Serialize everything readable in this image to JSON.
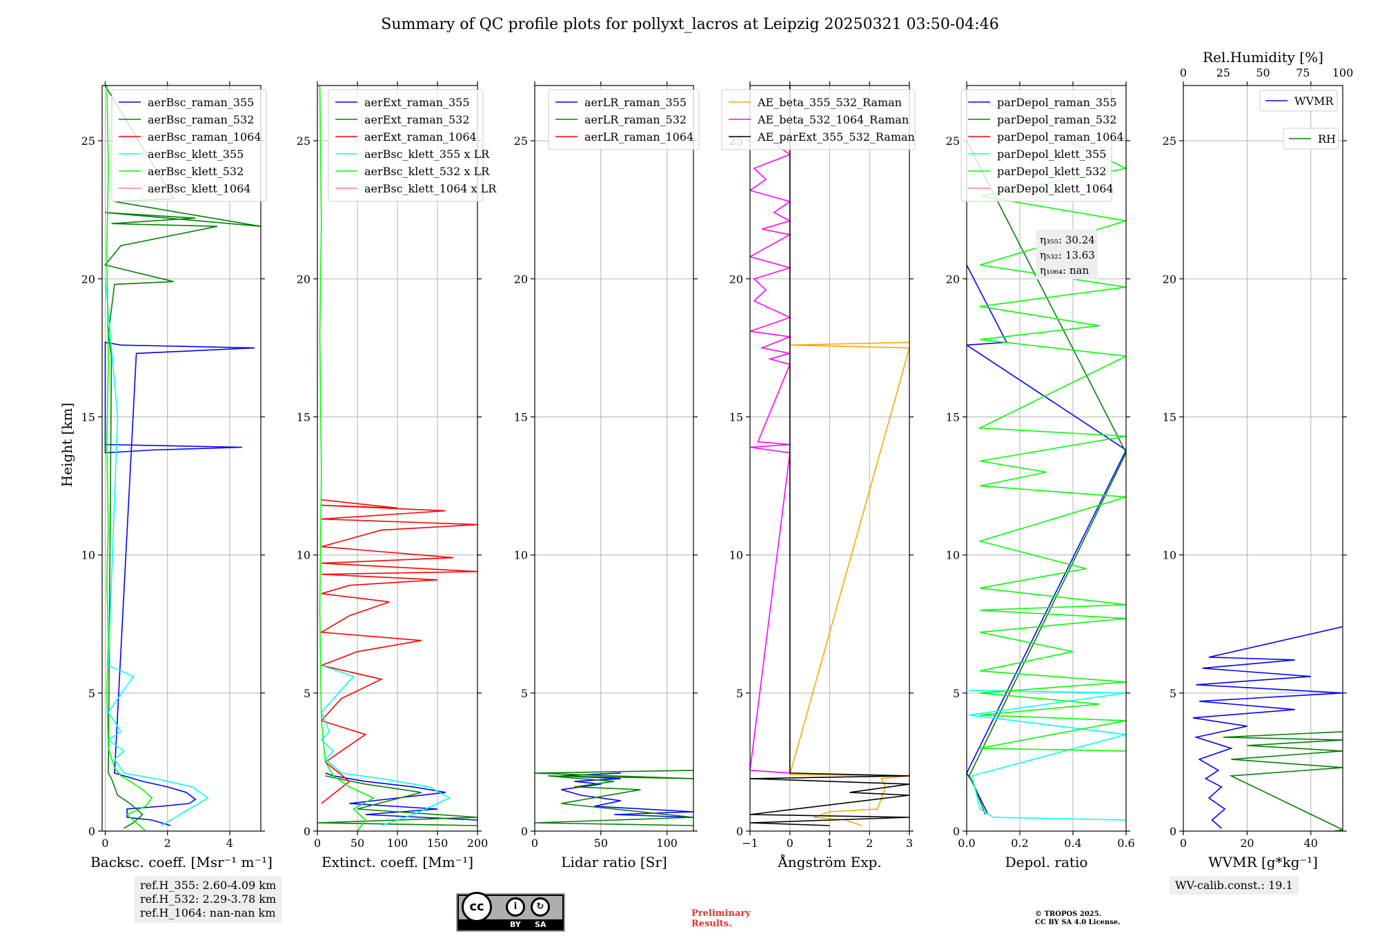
{
  "figure_title": "Summary of QC profile plots for pollyxt_lacros at Leipzig 20250321 03:50-04:46",
  "footer": {
    "ref_lines": [
      "ref.H_355: 2.60-4.09 km",
      "ref.H_532: 2.29-3.78 km",
      "ref.H_1064: nan-nan km"
    ],
    "wv_calib": "WV-calib.const.: 19.1",
    "preliminary": [
      "Preliminary",
      "Results."
    ],
    "copyright": [
      "© TROPOS 2025.",
      "CC BY SA 4.0 License."
    ],
    "license_badge": {
      "icon": "cc-by-sa-icon",
      "by": "BY",
      "sa": "SA"
    }
  },
  "colors": {
    "blue": "#0000ff",
    "green": "#008000",
    "red": "#ff0000",
    "cyan": "#00ffff",
    "lime": "#00ff00",
    "salmon": "#fa8072",
    "orange": "#ffa500",
    "magenta": "#ff00ff",
    "black": "#000000"
  },
  "chart_data": [
    {
      "type": "line",
      "xlabel": "Backsc. coeff. [Msr⁻¹ m⁻¹]",
      "ylabel": "Height [km]",
      "xlim": [
        -0.1,
        5
      ],
      "ylim": [
        0,
        27
      ],
      "xticks": [
        0,
        2,
        4
      ],
      "xticklabels": [
        "0",
        "2",
        "4"
      ],
      "yticks": [
        0,
        5,
        10,
        15,
        20,
        25
      ],
      "yticklabels": [
        "0",
        "5",
        "10",
        "15",
        "20",
        "25"
      ],
      "grid": true,
      "legend_placement": "top-right",
      "series": [
        {
          "name": "aerBsc_raman_355",
          "color": "#0000ff",
          "x": [
            2.1,
            1.5,
            0.7,
            0.7,
            1.8,
            2.7,
            2.9,
            2.6,
            2.0,
            1.2,
            0.6,
            0.3,
            1.0,
            4.8,
            0.5,
            0,
            0,
            1.5,
            4.4,
            0
          ],
          "y": [
            0.2,
            0.4,
            0.5,
            0.8,
            0.9,
            1.0,
            1.15,
            1.4,
            1.6,
            1.8,
            2.0,
            2.1,
            17.3,
            17.5,
            17.6,
            17.7,
            13.7,
            13.8,
            13.9,
            14.0
          ]
        },
        {
          "name": "aerBsc_raman_532",
          "color": "#008000",
          "x": [
            0.6,
            0.9,
            1.2,
            0.8,
            0.4,
            0.3,
            0.2,
            0.1,
            0.2,
            0.1,
            0.3,
            2.2,
            0,
            0.5,
            3.6,
            0.2,
            2.9,
            0,
            5,
            0.3,
            2.2,
            0
          ],
          "y": [
            0.1,
            0.3,
            0.6,
            1.0,
            1.3,
            1.6,
            1.9,
            2.1,
            17.2,
            18.0,
            19.8,
            19.9,
            20.5,
            21.2,
            21.9,
            22.0,
            22.2,
            22.4,
            21.9,
            22.8,
            22.9,
            27
          ]
        },
        {
          "name": "aerBsc_raman_1064",
          "color": "#ff0000",
          "x": [],
          "y": []
        },
        {
          "name": "aerBsc_klett_355",
          "color": "#00ffff",
          "x": [
            1.8,
            2.4,
            3.3,
            2.8,
            1.6,
            0.6,
            0.3,
            0.6,
            0.1,
            0.5,
            0.1,
            0.9,
            0.1,
            0.4,
            0
          ],
          "y": [
            0.2,
            0.6,
            1.2,
            1.6,
            1.9,
            2.1,
            2.6,
            2.9,
            3.3,
            3.6,
            4.3,
            5.6,
            6.0,
            15.0,
            20.0
          ]
        },
        {
          "name": "aerBsc_klett_532",
          "color": "#00ff00",
          "x": [
            1.3,
            1.0,
            0.7,
            1.3,
            1.5,
            1.2,
            0.8,
            0.5,
            0.3,
            0.1,
            0.05,
            0.1,
            0.05,
            0.1,
            0.05,
            0.1,
            0.05,
            0.1,
            0.05
          ],
          "y": [
            0.0,
            0.3,
            0.6,
            0.9,
            1.2,
            1.5,
            1.8,
            2.0,
            2.3,
            3.0,
            5.0,
            7.0,
            9.0,
            11.0,
            14.0,
            17.0,
            21.0,
            24.0,
            27.0
          ]
        },
        {
          "name": "aerBsc_klett_1064",
          "color": "#fa8072",
          "x": [],
          "y": []
        }
      ]
    },
    {
      "type": "line",
      "xlabel": "Extinct. coeff. [Mm⁻¹]",
      "ylabel": "",
      "xlim": [
        0,
        200
      ],
      "ylim": [
        0,
        27
      ],
      "xticks": [
        0,
        50,
        100,
        150,
        200
      ],
      "xticklabels": [
        "0",
        "50",
        "100",
        "150",
        "200"
      ],
      "yticks": [
        0,
        5,
        10,
        15,
        20,
        25
      ],
      "yticklabels": [
        "0",
        "5",
        "10",
        "15",
        "20",
        "25"
      ],
      "grid": true,
      "legend_placement": "top-right",
      "series": [
        {
          "name": "aerExt_raman_355",
          "color": "#0000ff",
          "x": [
            200,
            60,
            150,
            40,
            100,
            160,
            120,
            60,
            20,
            10
          ],
          "y": [
            0.4,
            0.6,
            0.8,
            1.0,
            1.2,
            1.4,
            1.6,
            1.8,
            2.0,
            2.1
          ]
        },
        {
          "name": "aerExt_raman_532",
          "color": "#008000",
          "x": [
            200,
            0,
            200,
            50,
            130,
            60,
            10
          ],
          "y": [
            0.2,
            0.3,
            0.5,
            0.8,
            1.4,
            1.7,
            2.0
          ]
        },
        {
          "name": "aerExt_raman_1064",
          "color": "#ff0000",
          "x": [
            5,
            40,
            10,
            60,
            5,
            30,
            80,
            5,
            50,
            130,
            5,
            40,
            90,
            5,
            40,
            150,
            5,
            200,
            5,
            170,
            5,
            80,
            200,
            5,
            160,
            5,
            100,
            5
          ],
          "y": [
            1.0,
            1.8,
            2.5,
            3.5,
            4.0,
            4.8,
            5.5,
            6.0,
            6.5,
            6.9,
            7.2,
            7.8,
            8.3,
            8.6,
            8.9,
            9.1,
            9.3,
            9.4,
            9.7,
            9.9,
            10.3,
            10.9,
            11.1,
            11.3,
            11.6,
            11.8,
            11.7,
            12.0
          ]
        },
        {
          "name": "aerBsc_klett_355 x LR",
          "color": "#00ffff",
          "x": [
            80,
            120,
            165,
            140,
            80,
            30,
            10,
            20,
            5,
            15,
            5,
            45,
            5
          ],
          "y": [
            0.2,
            0.6,
            1.2,
            1.6,
            1.9,
            2.1,
            2.6,
            2.9,
            3.3,
            3.6,
            4.3,
            5.6,
            6.0
          ]
        },
        {
          "name": "aerBsc_klett_532 x LR",
          "color": "#00ff00",
          "x": [
            50,
            60,
            45,
            70,
            40,
            20,
            10,
            5,
            3,
            5,
            3,
            5,
            3
          ],
          "y": [
            0.0,
            0.4,
            0.8,
            1.2,
            1.6,
            2.0,
            2.5,
            4.0,
            8.0,
            13.0,
            18.0,
            22.0,
            27.0
          ]
        },
        {
          "name": "aerBsc_klett_1064 x LR",
          "color": "#fa8072",
          "x": [],
          "y": []
        }
      ]
    },
    {
      "type": "line",
      "xlabel": "Lidar ratio [Sr]",
      "ylabel": "",
      "xlim": [
        0,
        120
      ],
      "ylim": [
        0,
        27
      ],
      "xticks": [
        0,
        50,
        100
      ],
      "xticklabels": [
        "0",
        "50",
        "100"
      ],
      "yticks": [
        0,
        5,
        10,
        15,
        20,
        25
      ],
      "yticklabels": [
        "0",
        "5",
        "10",
        "15",
        "20",
        "25"
      ],
      "grid": true,
      "legend_placement": "top-right",
      "series": [
        {
          "name": "aerLR_raman_355",
          "color": "#0000ff",
          "x": [
            120,
            60,
            120,
            45,
            65,
            35,
            20,
            50,
            30,
            65,
            20,
            65
          ],
          "y": [
            0.5,
            0.6,
            0.7,
            0.9,
            1.1,
            1.3,
            1.5,
            1.7,
            1.8,
            1.9,
            2.0,
            2.1
          ]
        },
        {
          "name": "aerLR_raman_532",
          "color": "#008000",
          "x": [
            120,
            0,
            120,
            20,
            80,
            30,
            60,
            10,
            120,
            0,
            120
          ],
          "y": [
            0.2,
            0.3,
            0.5,
            1.0,
            1.5,
            1.6,
            1.8,
            2.0,
            1.9,
            2.1,
            2.2
          ]
        },
        {
          "name": "aerLR_raman_1064",
          "color": "#ff0000",
          "x": [],
          "y": []
        }
      ]
    },
    {
      "type": "line",
      "xlabel": "Ångström Exp.",
      "ylabel": "",
      "xlim": [
        -1,
        3
      ],
      "ylim": [
        0,
        27
      ],
      "xticks": [
        -1,
        0,
        1,
        2,
        3
      ],
      "xticklabels": [
        "−1",
        "0",
        "1",
        "2",
        "3"
      ],
      "yticks": [
        0,
        5,
        10,
        15,
        20,
        25
      ],
      "yticklabels": [
        "0",
        "5",
        "10",
        "15",
        "20",
        "25"
      ],
      "grid": true,
      "legend_placement": "top-right",
      "series": [
        {
          "name": "AE_beta_355_532_Raman",
          "color": "#ffa500",
          "x": [
            1.8,
            1.4,
            0.6,
            1.0,
            2.2,
            2.3,
            2.4,
            2.3,
            3.0,
            0,
            3.0,
            0,
            3.0
          ],
          "y": [
            0.2,
            0.4,
            0.5,
            0.7,
            0.8,
            1.2,
            1.6,
            1.9,
            2.0,
            2.05,
            17.5,
            17.6,
            17.7
          ]
        },
        {
          "name": "AE_beta_532_1064_Raman",
          "color": "#ff00ff",
          "x": [
            0,
            -1,
            0,
            -1,
            0,
            -0.8,
            0,
            -0.5,
            0,
            -0.7,
            0,
            -1,
            0,
            -0.9,
            -0.6,
            -0.9,
            0,
            -1,
            0,
            -0.7,
            0,
            -0.4,
            0,
            -1,
            -0.6,
            -0.9,
            0,
            -0.3,
            0
          ],
          "y": [
            2.1,
            2.2,
            13.7,
            13.9,
            14.0,
            14.1,
            16.9,
            17.1,
            17.3,
            17.5,
            17.9,
            18.1,
            18.6,
            19.2,
            19.6,
            20.0,
            20.4,
            20.8,
            21.6,
            21.8,
            22.1,
            22.4,
            22.8,
            23.2,
            23.6,
            24.0,
            24.5,
            24.8,
            25.2
          ]
        },
        {
          "name": "AE_parExt_355_532_Raman",
          "color": "#000000",
          "x": [
            1.0,
            -1,
            3.0,
            -1,
            3.0,
            1.5,
            2.5,
            3.0,
            -1,
            3.0,
            0,
            0
          ],
          "y": [
            0.2,
            0.3,
            0.5,
            0.6,
            1.3,
            1.4,
            1.6,
            1.7,
            1.9,
            2.0,
            2.1,
            27
          ]
        }
      ]
    },
    {
      "type": "line",
      "xlabel": "Depol. ratio",
      "ylabel": "",
      "xlim": [
        0,
        0.6
      ],
      "ylim": [
        0,
        27
      ],
      "xticks": [
        0,
        0.2,
        0.4,
        0.6
      ],
      "xticklabels": [
        "0.0",
        "0.2",
        "0.4",
        "0.6"
      ],
      "yticks": [
        0,
        5,
        10,
        15,
        20,
        25
      ],
      "yticklabels": [
        "0",
        "5",
        "10",
        "15",
        "20",
        "25"
      ],
      "grid": true,
      "legend_placement": "top-left",
      "series": [
        {
          "name": "parDepol_raman_355",
          "color": "#0000ff",
          "x": [
            0.08,
            0.05,
            0.02,
            0,
            0.6,
            0,
            0.15,
            0
          ],
          "y": [
            0.6,
            1.2,
            1.8,
            2.1,
            13.8,
            17.6,
            17.7,
            20.5
          ]
        },
        {
          "name": "parDepol_raman_532",
          "color": "#008000",
          "x": [
            0.07,
            0.05,
            0.03,
            0.01,
            0.6,
            0
          ],
          "y": [
            0.6,
            1.1,
            1.6,
            2.0,
            13.7,
            25.0
          ]
        },
        {
          "name": "parDepol_raman_1064",
          "color": "#ff0000",
          "x": [],
          "y": []
        },
        {
          "name": "parDepol_klett_355",
          "color": "#00ffff",
          "x": [
            0.6,
            0.1,
            0.05,
            0.02,
            0.6,
            0.01,
            0.6,
            0.01
          ],
          "y": [
            0.4,
            0.5,
            0.8,
            2.0,
            3.5,
            4.2,
            5.0,
            5.1
          ]
        },
        {
          "name": "parDepol_klett_532",
          "color": "#00ff00",
          "x": [
            0.6,
            0.05,
            0.6,
            0.05,
            0.5,
            0.05,
            0.6,
            0.05,
            0.4,
            0.05,
            0.6,
            0.05,
            0.6,
            0.05,
            0.45,
            0.05,
            0.6,
            0.05,
            0.3,
            0.05,
            0.6,
            0.05,
            0.6,
            0.05,
            0.5,
            0.05,
            0.6,
            0.05,
            0.6,
            0.05,
            0.6,
            0.05
          ],
          "y": [
            2.9,
            3.0,
            4.0,
            4.2,
            4.6,
            5.0,
            5.4,
            5.8,
            6.5,
            7.2,
            7.7,
            8.0,
            8.2,
            8.8,
            9.5,
            10.5,
            12.1,
            12.5,
            13.0,
            13.4,
            14.3,
            14.6,
            17.2,
            17.8,
            18.3,
            19.0,
            19.7,
            20.5,
            22.1,
            23.0,
            24.0,
            26.5
          ]
        },
        {
          "name": "parDepol_klett_1064",
          "color": "#fa8072",
          "x": [],
          "y": []
        }
      ],
      "annotations": [
        "η₃₅₅: 30.24",
        "η₅₃₂: 13.63",
        "η₁₀₆₄: nan"
      ]
    },
    {
      "type": "line",
      "xlabel": "WVMR [g*kg⁻¹]",
      "ylabel": "",
      "xlim": [
        0,
        50
      ],
      "ylim": [
        0,
        27
      ],
      "xticks": [
        0,
        20,
        40
      ],
      "xticklabels": [
        "0",
        "20",
        "40"
      ],
      "yticks": [
        0,
        5,
        10,
        15,
        20,
        25
      ],
      "yticklabels": [
        "0",
        "5",
        "10",
        "15",
        "20",
        "25"
      ],
      "top_axis": {
        "label": "Rel.Humidity [%]",
        "ticks": [
          "0",
          "25",
          "50",
          "75",
          "100"
        ],
        "lim": [
          0,
          100
        ]
      },
      "grid": true,
      "legend_placement": "top-right",
      "series": [
        {
          "name": "WVMR",
          "color": "#0000ff",
          "x": [
            12,
            9,
            13,
            8,
            12,
            7,
            11,
            5,
            15,
            4,
            20,
            3,
            35,
            5,
            50,
            4,
            40,
            6,
            35,
            8,
            50
          ],
          "y": [
            0.1,
            0.4,
            0.8,
            1.2,
            1.6,
            1.9,
            2.2,
            2.6,
            3.0,
            3.4,
            3.8,
            4.1,
            4.4,
            4.7,
            5.0,
            5.3,
            5.6,
            5.9,
            6.2,
            6.3,
            7.4
          ]
        },
        {
          "name": "RH",
          "color": "#008000",
          "axis": "top",
          "x": [
            95,
            100,
            30,
            100,
            30,
            100,
            40,
            100,
            25,
            100
          ],
          "y": [
            0.0,
            0.05,
            2.0,
            2.3,
            2.6,
            2.9,
            3.1,
            3.3,
            3.4,
            3.6
          ]
        }
      ]
    }
  ]
}
